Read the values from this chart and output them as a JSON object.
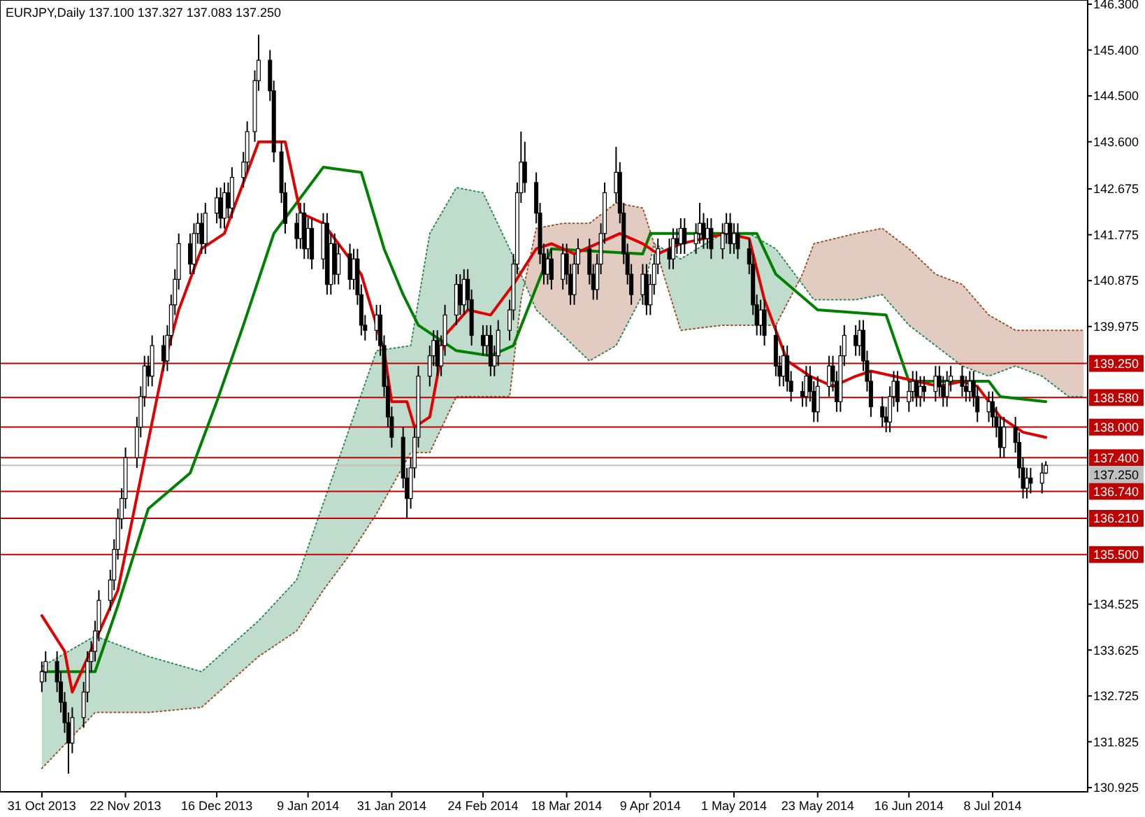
{
  "chart_data": {
    "type": "candlestick",
    "title": "EURJPY,Daily  137.100 137.327 137.083 137.250",
    "x": [
      "2013-10-31",
      "2013-11-01",
      "2013-11-04",
      "2013-11-05",
      "2013-11-06",
      "2013-11-07",
      "2013-11-08",
      "2013-11-11",
      "2013-11-12",
      "2013-11-13",
      "2013-11-14",
      "2013-11-15",
      "2013-11-18",
      "2013-11-19",
      "2013-11-20",
      "2013-11-21",
      "2013-11-22",
      "2013-11-25",
      "2013-11-26",
      "2013-11-27",
      "2013-11-28",
      "2013-11-29",
      "2013-12-02",
      "2013-12-03",
      "2013-12-04",
      "2013-12-05",
      "2013-12-06",
      "2013-12-09",
      "2013-12-10",
      "2013-12-11",
      "2013-12-12",
      "2013-12-13",
      "2013-12-16",
      "2013-12-17",
      "2013-12-18",
      "2013-12-19",
      "2013-12-20",
      "2013-12-23",
      "2013-12-24",
      "2013-12-26",
      "2013-12-27",
      "2013-12-30",
      "2013-12-31",
      "2014-01-02",
      "2014-01-03",
      "2014-01-06",
      "2014-01-07",
      "2014-01-08",
      "2014-01-09",
      "2014-01-10",
      "2014-01-13",
      "2014-01-14",
      "2014-01-15",
      "2014-01-16",
      "2014-01-17",
      "2014-01-20",
      "2014-01-21",
      "2014-01-22",
      "2014-01-23",
      "2014-01-24",
      "2014-01-27",
      "2014-01-28",
      "2014-01-29",
      "2014-01-30",
      "2014-01-31",
      "2014-02-03",
      "2014-02-04",
      "2014-02-05",
      "2014-02-06",
      "2014-02-07",
      "2014-02-10",
      "2014-02-11",
      "2014-02-12",
      "2014-02-13",
      "2014-02-14",
      "2014-02-17",
      "2014-02-18",
      "2014-02-19",
      "2014-02-20",
      "2014-02-21",
      "2014-02-24",
      "2014-02-25",
      "2014-02-26",
      "2014-02-27",
      "2014-02-28",
      "2014-03-03",
      "2014-03-04",
      "2014-03-05",
      "2014-03-06",
      "2014-03-07",
      "2014-03-10",
      "2014-03-11",
      "2014-03-12",
      "2014-03-13",
      "2014-03-14",
      "2014-03-17",
      "2014-03-18",
      "2014-03-19",
      "2014-03-20",
      "2014-03-21",
      "2014-03-24",
      "2014-03-25",
      "2014-03-26",
      "2014-03-27",
      "2014-03-28",
      "2014-03-31",
      "2014-04-01",
      "2014-04-02",
      "2014-04-03",
      "2014-04-04",
      "2014-04-07",
      "2014-04-08",
      "2014-04-09",
      "2014-04-10",
      "2014-04-11",
      "2014-04-14",
      "2014-04-15",
      "2014-04-16",
      "2014-04-17",
      "2014-04-18",
      "2014-04-21",
      "2014-04-22",
      "2014-04-23",
      "2014-04-24",
      "2014-04-25",
      "2014-04-28",
      "2014-04-29",
      "2014-04-30",
      "2014-05-01",
      "2014-05-02",
      "2014-05-05",
      "2014-05-06",
      "2014-05-07",
      "2014-05-08",
      "2014-05-09",
      "2014-05-12",
      "2014-05-13",
      "2014-05-14",
      "2014-05-15",
      "2014-05-16",
      "2014-05-19",
      "2014-05-20",
      "2014-05-21",
      "2014-05-22",
      "2014-05-23",
      "2014-05-26",
      "2014-05-27",
      "2014-05-28",
      "2014-05-29",
      "2014-05-30",
      "2014-06-02",
      "2014-06-03",
      "2014-06-04",
      "2014-06-05",
      "2014-06-06",
      "2014-06-09",
      "2014-06-10",
      "2014-06-11",
      "2014-06-12",
      "2014-06-13",
      "2014-06-16",
      "2014-06-17",
      "2014-06-18",
      "2014-06-19",
      "2014-06-20",
      "2014-06-23",
      "2014-06-24",
      "2014-06-25",
      "2014-06-26",
      "2014-06-27",
      "2014-06-30",
      "2014-07-01",
      "2014-07-02",
      "2014-07-03",
      "2014-07-04",
      "2014-07-07",
      "2014-07-08",
      "2014-07-09",
      "2014-07-10",
      "2014-07-11",
      "2014-07-14",
      "2014-07-15",
      "2014-07-16",
      "2014-07-17",
      "2014-07-18",
      "2014-07-21",
      "2014-07-22"
    ],
    "ohlc": [
      [
        133.0,
        133.4,
        132.8,
        133.2
      ],
      [
        133.2,
        133.6,
        133.0,
        133.4
      ],
      [
        133.4,
        133.6,
        132.8,
        133.0
      ],
      [
        133.0,
        133.2,
        132.4,
        132.6
      ],
      [
        132.6,
        132.8,
        132.0,
        132.2
      ],
      [
        132.2,
        132.4,
        131.2,
        131.8
      ],
      [
        131.8,
        132.5,
        131.6,
        132.3
      ],
      [
        132.3,
        133.0,
        132.1,
        132.8
      ],
      [
        132.8,
        133.6,
        132.6,
        133.4
      ],
      [
        133.4,
        133.8,
        133.2,
        133.6
      ],
      [
        133.6,
        134.2,
        133.4,
        134.0
      ],
      [
        134.0,
        134.8,
        133.8,
        134.6
      ],
      [
        134.6,
        135.2,
        134.4,
        135.0
      ],
      [
        135.0,
        135.8,
        134.8,
        135.6
      ],
      [
        135.6,
        136.4,
        135.4,
        136.2
      ],
      [
        136.2,
        136.8,
        136.0,
        136.6
      ],
      [
        136.6,
        137.6,
        136.4,
        137.4
      ],
      [
        137.4,
        138.2,
        137.2,
        138.0
      ],
      [
        138.0,
        138.8,
        137.8,
        138.6
      ],
      [
        138.6,
        139.4,
        138.4,
        139.2
      ],
      [
        139.2,
        139.4,
        138.8,
        139.0
      ],
      [
        139.0,
        139.8,
        138.8,
        139.6
      ],
      [
        139.6,
        139.8,
        139.1,
        139.3
      ],
      [
        139.3,
        140.0,
        139.1,
        139.8
      ],
      [
        139.8,
        140.6,
        139.6,
        140.4
      ],
      [
        140.4,
        141.1,
        140.2,
        140.9
      ],
      [
        140.9,
        141.8,
        140.7,
        141.6
      ],
      [
        141.6,
        141.8,
        141.0,
        141.2
      ],
      [
        141.2,
        142.0,
        141.0,
        141.8
      ],
      [
        141.8,
        142.2,
        141.6,
        142.0
      ],
      [
        142.0,
        142.2,
        141.4,
        141.6
      ],
      [
        141.6,
        142.4,
        141.4,
        142.2
      ],
      [
        142.2,
        142.7,
        142.0,
        142.5
      ],
      [
        142.5,
        142.7,
        141.9,
        142.1
      ],
      [
        142.1,
        142.8,
        141.9,
        142.6
      ],
      [
        142.6,
        142.8,
        142.1,
        142.3
      ],
      [
        142.3,
        143.1,
        142.1,
        142.9
      ],
      [
        142.9,
        143.4,
        142.7,
        143.2
      ],
      [
        143.2,
        144.0,
        143.0,
        143.8
      ],
      [
        143.8,
        145.0,
        143.6,
        144.8
      ],
      [
        144.8,
        145.7,
        144.6,
        145.2
      ],
      [
        145.2,
        145.4,
        144.4,
        144.6
      ],
      [
        144.6,
        144.8,
        143.2,
        143.4
      ],
      [
        143.4,
        143.6,
        142.4,
        142.6
      ],
      [
        142.6,
        142.8,
        141.8,
        142.0
      ],
      [
        142.0,
        142.2,
        141.5,
        141.7
      ],
      [
        141.7,
        142.4,
        141.5,
        142.2
      ],
      [
        142.2,
        142.4,
        141.3,
        141.5
      ],
      [
        141.5,
        142.1,
        141.3,
        141.9
      ],
      [
        141.9,
        142.1,
        141.1,
        141.3
      ],
      [
        141.3,
        142.2,
        141.1,
        142.0
      ],
      [
        142.0,
        142.2,
        140.6,
        140.8
      ],
      [
        140.8,
        141.8,
        140.6,
        141.6
      ],
      [
        141.6,
        141.8,
        140.8,
        141.0
      ],
      [
        141.0,
        141.6,
        140.8,
        141.4
      ],
      [
        141.4,
        141.6,
        140.7,
        140.9
      ],
      [
        140.9,
        141.5,
        140.7,
        141.3
      ],
      [
        141.3,
        141.5,
        140.4,
        140.6
      ],
      [
        140.6,
        140.8,
        139.8,
        140.0
      ],
      [
        140.0,
        140.2,
        139.7,
        139.9
      ],
      [
        139.9,
        140.4,
        139.7,
        140.2
      ],
      [
        140.2,
        140.4,
        139.4,
        139.6
      ],
      [
        139.6,
        139.8,
        138.6,
        138.8
      ],
      [
        138.8,
        139.0,
        138.0,
        138.2
      ],
      [
        138.2,
        138.4,
        137.6,
        137.8
      ],
      [
        137.8,
        138.0,
        136.8,
        137.0
      ],
      [
        137.0,
        137.2,
        136.2,
        136.6
      ],
      [
        136.6,
        137.4,
        136.4,
        137.2
      ],
      [
        137.2,
        138.0,
        137.0,
        137.8
      ],
      [
        137.8,
        139.2,
        137.6,
        139.0
      ],
      [
        139.0,
        139.6,
        138.8,
        139.4
      ],
      [
        139.4,
        139.9,
        139.2,
        139.7
      ],
      [
        139.7,
        139.9,
        139.0,
        139.2
      ],
      [
        139.2,
        139.8,
        139.0,
        139.6
      ],
      [
        139.6,
        140.4,
        139.4,
        140.2
      ],
      [
        140.2,
        141.0,
        140.0,
        140.8
      ],
      [
        140.8,
        141.0,
        140.2,
        140.4
      ],
      [
        140.4,
        141.1,
        140.2,
        140.9
      ],
      [
        140.9,
        141.1,
        140.3,
        140.5
      ],
      [
        140.5,
        140.7,
        139.6,
        139.8
      ],
      [
        139.8,
        140.0,
        139.4,
        139.6
      ],
      [
        139.6,
        140.0,
        139.4,
        139.8
      ],
      [
        139.8,
        140.0,
        139.0,
        139.2
      ],
      [
        139.2,
        139.6,
        139.0,
        139.4
      ],
      [
        139.4,
        140.1,
        139.2,
        139.9
      ],
      [
        139.9,
        140.5,
        139.7,
        140.3
      ],
      [
        140.3,
        141.4,
        140.1,
        141.2
      ],
      [
        141.2,
        142.8,
        141.0,
        142.6
      ],
      [
        142.6,
        143.8,
        142.4,
        143.2
      ],
      [
        143.2,
        143.6,
        142.6,
        142.8
      ],
      [
        142.8,
        143.0,
        142.0,
        142.2
      ],
      [
        142.2,
        142.4,
        141.2,
        141.4
      ],
      [
        141.4,
        141.6,
        140.8,
        141.0
      ],
      [
        141.0,
        141.5,
        140.8,
        141.3
      ],
      [
        141.3,
        141.5,
        140.7,
        140.9
      ],
      [
        140.9,
        141.6,
        140.7,
        141.4
      ],
      [
        141.4,
        141.6,
        140.8,
        141.0
      ],
      [
        141.0,
        141.2,
        140.4,
        140.6
      ],
      [
        140.6,
        141.4,
        140.4,
        141.2
      ],
      [
        141.2,
        141.7,
        141.0,
        141.5
      ],
      [
        141.5,
        141.7,
        140.8,
        141.0
      ],
      [
        141.0,
        141.2,
        140.5,
        140.7
      ],
      [
        140.7,
        141.4,
        140.5,
        141.2
      ],
      [
        141.2,
        142.0,
        141.0,
        141.8
      ],
      [
        141.8,
        142.8,
        141.6,
        142.6
      ],
      [
        142.6,
        143.5,
        142.4,
        143.0
      ],
      [
        143.0,
        143.2,
        142.0,
        142.2
      ],
      [
        142.2,
        142.4,
        141.2,
        141.4
      ],
      [
        141.4,
        141.6,
        140.8,
        141.0
      ],
      [
        141.0,
        141.2,
        140.4,
        140.6
      ],
      [
        140.6,
        141.2,
        140.4,
        141.0
      ],
      [
        141.0,
        141.2,
        140.2,
        140.4
      ],
      [
        140.4,
        141.0,
        140.2,
        140.8
      ],
      [
        140.8,
        141.4,
        140.6,
        141.2
      ],
      [
        141.2,
        141.7,
        141.0,
        141.5
      ],
      [
        141.5,
        141.7,
        141.1,
        141.3
      ],
      [
        141.3,
        141.9,
        141.1,
        141.7
      ],
      [
        141.7,
        141.9,
        141.4,
        141.6
      ],
      [
        141.6,
        142.1,
        141.4,
        141.9
      ],
      [
        141.9,
        142.1,
        141.4,
        141.6
      ],
      [
        141.6,
        142.0,
        141.4,
        141.8
      ],
      [
        141.8,
        142.4,
        141.6,
        142.0
      ],
      [
        142.0,
        142.2,
        141.5,
        141.7
      ],
      [
        141.7,
        142.1,
        141.5,
        141.9
      ],
      [
        141.9,
        142.1,
        141.3,
        141.5
      ],
      [
        141.5,
        142.0,
        141.3,
        141.8
      ],
      [
        141.8,
        142.2,
        141.6,
        142.0
      ],
      [
        142.0,
        142.2,
        141.4,
        141.6
      ],
      [
        141.6,
        142.0,
        141.4,
        141.8
      ],
      [
        141.8,
        142.0,
        141.3,
        141.5
      ],
      [
        141.5,
        141.7,
        141.0,
        141.2
      ],
      [
        141.2,
        141.4,
        140.2,
        140.4
      ],
      [
        140.4,
        140.6,
        139.8,
        140.0
      ],
      [
        140.0,
        140.5,
        139.8,
        140.3
      ],
      [
        140.3,
        140.5,
        139.6,
        139.8
      ],
      [
        139.8,
        140.0,
        139.0,
        139.2
      ],
      [
        139.2,
        139.4,
        138.8,
        139.0
      ],
      [
        139.0,
        139.6,
        138.8,
        139.4
      ],
      [
        139.4,
        139.6,
        138.7,
        138.9
      ],
      [
        138.9,
        139.1,
        138.5,
        138.7
      ],
      [
        138.7,
        138.9,
        138.4,
        138.6
      ],
      [
        138.6,
        139.2,
        138.4,
        139.0
      ],
      [
        139.0,
        139.2,
        138.5,
        138.7
      ],
      [
        138.7,
        138.9,
        138.1,
        138.3
      ],
      [
        138.3,
        139.0,
        138.1,
        138.8
      ],
      [
        138.8,
        139.4,
        138.6,
        139.2
      ],
      [
        139.2,
        139.4,
        138.7,
        138.9
      ],
      [
        138.9,
        139.1,
        138.3,
        138.5
      ],
      [
        138.5,
        139.6,
        138.3,
        139.4
      ],
      [
        139.4,
        140.0,
        139.2,
        139.8
      ],
      [
        139.8,
        140.0,
        139.4,
        139.6
      ],
      [
        139.6,
        140.1,
        139.4,
        139.9
      ],
      [
        139.9,
        140.1,
        139.1,
        139.3
      ],
      [
        139.3,
        139.5,
        138.7,
        138.9
      ],
      [
        138.9,
        139.1,
        138.2,
        138.4
      ],
      [
        138.4,
        138.6,
        138.0,
        138.2
      ],
      [
        138.2,
        138.4,
        137.9,
        138.1
      ],
      [
        138.1,
        138.8,
        137.9,
        138.6
      ],
      [
        138.6,
        139.1,
        138.4,
        138.9
      ],
      [
        138.9,
        139.1,
        138.3,
        138.5
      ],
      [
        138.5,
        138.9,
        138.3,
        138.7
      ],
      [
        138.7,
        139.1,
        138.5,
        138.9
      ],
      [
        138.9,
        139.1,
        138.4,
        138.6
      ],
      [
        138.6,
        139.0,
        138.4,
        138.8
      ],
      [
        138.8,
        139.0,
        138.5,
        138.7
      ],
      [
        138.7,
        139.2,
        138.5,
        139.0
      ],
      [
        139.0,
        139.2,
        138.6,
        138.8
      ],
      [
        138.8,
        139.0,
        138.4,
        138.6
      ],
      [
        138.6,
        139.1,
        138.4,
        138.9
      ],
      [
        138.9,
        139.2,
        138.7,
        139.0
      ],
      [
        139.0,
        139.2,
        138.6,
        138.8
      ],
      [
        138.8,
        139.0,
        138.5,
        138.7
      ],
      [
        138.7,
        139.1,
        138.5,
        138.9
      ],
      [
        138.9,
        139.1,
        138.4,
        138.6
      ],
      [
        138.6,
        138.8,
        138.1,
        138.3
      ],
      [
        138.3,
        138.7,
        138.1,
        138.5
      ],
      [
        138.5,
        138.7,
        138.0,
        138.2
      ],
      [
        138.2,
        138.4,
        137.8,
        138.0
      ],
      [
        138.0,
        138.2,
        137.4,
        137.6
      ],
      [
        137.6,
        138.2,
        137.4,
        138.0
      ],
      [
        138.0,
        138.2,
        137.5,
        137.7
      ],
      [
        137.7,
        137.9,
        137.0,
        137.2
      ],
      [
        137.2,
        137.4,
        136.6,
        136.8
      ],
      [
        136.8,
        137.2,
        136.6,
        137.0
      ],
      [
        137.0,
        137.2,
        136.7,
        136.9
      ],
      [
        136.9,
        137.3,
        136.7,
        137.1
      ],
      [
        137.1,
        137.33,
        137.08,
        137.25
      ]
    ],
    "series": [
      {
        "type": "line",
        "color": "#2e8b57",
        "line_style": "dotted",
        "x": [
          "2013-10-31",
          "2013-11-14",
          "2013-11-28",
          "2013-12-12",
          "2013-12-27",
          "2014-01-06",
          "2014-01-13",
          "2014-01-20",
          "2014-01-27",
          "2014-02-05",
          "2014-02-10",
          "2014-02-17",
          "2014-02-24",
          "2014-03-03",
          "2014-03-06",
          "2014-03-10",
          "2014-03-17",
          "2014-03-24",
          "2014-03-31",
          "2014-04-07",
          "2014-04-10",
          "2014-04-17",
          "2014-04-28",
          "2014-05-05",
          "2014-05-12",
          "2014-05-19",
          "2014-05-22",
          "2014-06-02",
          "2014-06-09",
          "2014-06-16",
          "2014-06-23",
          "2014-06-30",
          "2014-07-07",
          "2014-07-14",
          "2014-07-21",
          "2014-07-28",
          "2014-08-01"
        ],
        "values": [
          133.3,
          133.9,
          133.5,
          133.2,
          134.2,
          135.0,
          136.5,
          138.0,
          139.5,
          139.6,
          141.8,
          142.7,
          142.6,
          141.5,
          141.0,
          140.3,
          139.8,
          139.3,
          139.6,
          140.6,
          141.6,
          141.3,
          141.8,
          141.8,
          141.5,
          140.8,
          140.5,
          140.5,
          140.6,
          140.0,
          139.6,
          139.2,
          139.0,
          139.2,
          139.0,
          138.6,
          138.6
        ],
        "upper": [
          133.3,
          133.9,
          133.5,
          133.2,
          134.2,
          135.0,
          136.5,
          138.0,
          139.5,
          139.6,
          141.8,
          142.7,
          142.6,
          141.5,
          141.0,
          140.3,
          139.8,
          139.3,
          139.6,
          140.6,
          141.6,
          141.3,
          141.8,
          141.8,
          141.5,
          140.8,
          140.5,
          140.5,
          140.6,
          140.0,
          139.6,
          139.2,
          139.0,
          139.2,
          139.0,
          138.6,
          138.6
        ],
        "lower": [
          131.3,
          132.4,
          132.4,
          132.5,
          133.5,
          134.0,
          134.8,
          135.5,
          136.3,
          137.5,
          137.5,
          138.6,
          138.6,
          138.6,
          140.5,
          141.9,
          142.0,
          142.0,
          142.4,
          142.3,
          141.6,
          139.9,
          140.0,
          140.0,
          140.0,
          141.0,
          141.6,
          141.8,
          141.9,
          141.5,
          141.0,
          140.8,
          140.2,
          139.9,
          139.9,
          139.9,
          139.9
        ]
      },
      {
        "type": "line",
        "color": "#a0522d",
        "line_style": "dotted",
        "x": [
          "2013-10-31",
          "2013-11-14",
          "2013-11-28",
          "2013-12-12",
          "2013-12-27",
          "2014-01-06",
          "2014-01-13",
          "2014-01-20",
          "2014-01-27",
          "2014-02-05",
          "2014-02-10",
          "2014-02-17",
          "2014-02-24",
          "2014-03-03",
          "2014-03-06",
          "2014-03-10",
          "2014-03-17",
          "2014-03-24",
          "2014-03-31",
          "2014-04-07",
          "2014-04-10",
          "2014-04-17",
          "2014-04-28",
          "2014-05-05",
          "2014-05-12",
          "2014-05-19",
          "2014-05-22",
          "2014-06-02",
          "2014-06-09",
          "2014-06-16",
          "2014-06-23",
          "2014-06-30",
          "2014-07-07",
          "2014-07-14",
          "2014-07-21",
          "2014-07-28",
          "2014-08-01"
        ],
        "values": [
          131.3,
          132.4,
          132.4,
          132.5,
          133.5,
          134.0,
          134.8,
          135.5,
          136.3,
          137.5,
          137.5,
          138.6,
          138.6,
          138.6,
          140.5,
          141.9,
          142.0,
          142.0,
          142.4,
          142.3,
          141.6,
          139.9,
          140.0,
          140.0,
          140.0,
          141.0,
          141.6,
          141.8,
          141.9,
          141.5,
          141.0,
          140.8,
          140.2,
          139.9,
          139.9,
          139.9,
          139.9
        ]
      },
      {
        "type": "line",
        "color": "#008000",
        "x": [
          "2013-10-31",
          "2013-11-14",
          "2013-11-20",
          "2013-11-28",
          "2013-12-09",
          "2013-12-16",
          "2013-12-23",
          "2013-12-31",
          "2014-01-13",
          "2014-01-23",
          "2014-01-29",
          "2014-02-03",
          "2014-02-07",
          "2014-02-17",
          "2014-02-26",
          "2014-03-04",
          "2014-03-14",
          "2014-04-07",
          "2014-04-09",
          "2014-05-07",
          "2014-05-12",
          "2014-05-23",
          "2014-06-10",
          "2014-06-16",
          "2014-07-07",
          "2014-07-10",
          "2014-07-22"
        ],
        "values": [
          133.2,
          133.2,
          134.5,
          136.4,
          137.1,
          138.5,
          140.0,
          141.8,
          143.1,
          143.0,
          141.5,
          140.6,
          140.0,
          139.5,
          139.4,
          139.6,
          141.5,
          141.4,
          141.8,
          141.8,
          141.0,
          140.3,
          140.2,
          138.9,
          138.9,
          138.6,
          138.5
        ]
      },
      {
        "type": "line",
        "color": "#e00000",
        "x": [
          "2013-10-31",
          "2013-11-06",
          "2013-11-08",
          "2013-11-14",
          "2013-11-20",
          "2013-11-26",
          "2013-12-02",
          "2013-12-06",
          "2013-12-12",
          "2013-12-18",
          "2013-12-24",
          "2013-12-27",
          "2014-01-03",
          "2014-01-07",
          "2014-01-13",
          "2014-01-17",
          "2014-01-23",
          "2014-01-29",
          "2014-01-31",
          "2014-02-04",
          "2014-02-06",
          "2014-02-10",
          "2014-02-14",
          "2014-02-20",
          "2014-02-26",
          "2014-03-04",
          "2014-03-10",
          "2014-03-14",
          "2014-03-20",
          "2014-03-26",
          "2014-04-01",
          "2014-04-07",
          "2014-04-11",
          "2014-04-17",
          "2014-04-23",
          "2014-04-29",
          "2014-05-05",
          "2014-05-09",
          "2014-05-15",
          "2014-05-21",
          "2014-05-27",
          "2014-06-02",
          "2014-06-06",
          "2014-06-12",
          "2014-06-18",
          "2014-06-24",
          "2014-06-30",
          "2014-07-04",
          "2014-07-10",
          "2014-07-16",
          "2014-07-22"
        ],
        "values": [
          134.3,
          133.6,
          132.8,
          133.8,
          134.8,
          137.0,
          139.2,
          140.3,
          141.5,
          141.8,
          143.0,
          143.6,
          143.6,
          142.2,
          142.0,
          141.6,
          141.0,
          139.5,
          138.5,
          138.5,
          138.0,
          138.2,
          139.8,
          140.3,
          140.2,
          140.8,
          141.5,
          141.6,
          141.4,
          141.6,
          141.8,
          141.6,
          141.4,
          141.6,
          141.7,
          141.8,
          141.7,
          140.5,
          139.3,
          139.0,
          138.8,
          139.0,
          139.1,
          139.0,
          138.9,
          138.8,
          138.9,
          138.8,
          138.2,
          137.9,
          137.8
        ]
      }
    ],
    "xlim": [
      "2013-10-20",
      "2014-08-02"
    ],
    "xticks": [
      {
        "value": "2013-10-31",
        "label": "31 Oct 2013"
      },
      {
        "value": "2013-11-22",
        "label": "22 Nov 2013"
      },
      {
        "value": "2013-12-16",
        "label": "16 Dec 2013"
      },
      {
        "value": "2014-01-09",
        "label": "9 Jan 2014"
      },
      {
        "value": "2014-01-31",
        "label": "31 Jan 2014"
      },
      {
        "value": "2014-02-24",
        "label": "24 Feb 2014"
      },
      {
        "value": "2014-03-18",
        "label": "18 Mar 2014"
      },
      {
        "value": "2014-04-09",
        "label": "9 Apr 2014"
      },
      {
        "value": "2014-05-01",
        "label": "1 May 2014"
      },
      {
        "value": "2014-05-23",
        "label": "23 May 2014"
      },
      {
        "value": "2014-06-16",
        "label": "16 Jun 2014"
      },
      {
        "value": "2014-07-08",
        "label": "8 Jul 2014"
      }
    ],
    "ylim": [
      130.925,
      146.3
    ],
    "yticks": [
      {
        "value": 146.3,
        "label": "146.300"
      },
      {
        "value": 145.4,
        "label": "145.400"
      },
      {
        "value": 144.5,
        "label": "144.500"
      },
      {
        "value": 143.6,
        "label": "143.600"
      },
      {
        "value": 142.675,
        "label": "142.675"
      },
      {
        "value": 141.775,
        "label": "141.775"
      },
      {
        "value": 140.875,
        "label": "140.875"
      },
      {
        "value": 139.975,
        "label": "139.975"
      },
      {
        "value": 134.525,
        "label": "134.525"
      },
      {
        "value": 133.625,
        "label": "133.625"
      },
      {
        "value": 132.725,
        "label": "132.725"
      },
      {
        "value": 131.825,
        "label": "131.825"
      },
      {
        "value": 130.925,
        "label": "130.925"
      }
    ],
    "ref_lines": [
      {
        "axis": "y",
        "value": 139.25,
        "label": "139.250",
        "color": "#c00000"
      },
      {
        "axis": "y",
        "value": 138.58,
        "label": "138.580",
        "color": "#c00000"
      },
      {
        "axis": "y",
        "value": 138.0,
        "label": "138.000",
        "color": "#c00000"
      },
      {
        "axis": "y",
        "value": 137.4,
        "label": "137.400",
        "color": "#c00000"
      },
      {
        "axis": "y",
        "value": 136.74,
        "label": "136.740",
        "color": "#c00000"
      },
      {
        "axis": "y",
        "value": 136.21,
        "label": "136.210",
        "color": "#c00000"
      },
      {
        "axis": "y",
        "value": 135.5,
        "label": "135.500",
        "color": "#c00000"
      },
      {
        "axis": "y",
        "value": 137.25,
        "label": "137.250",
        "color": "#c0c0c0"
      }
    ]
  }
}
